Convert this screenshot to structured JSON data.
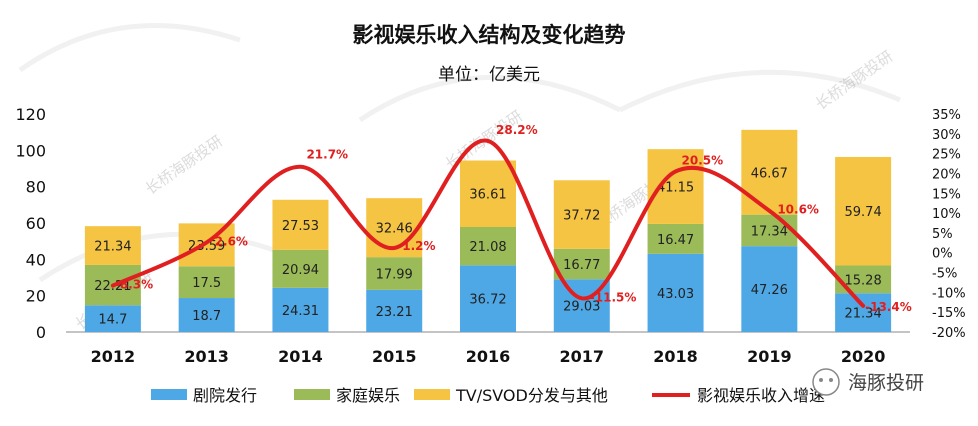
{
  "chart_data": {
    "type": "bar",
    "stacked": true,
    "title": "影视娱乐收入结构及变化趋势",
    "subtitle": "单位：亿美元",
    "categories": [
      "2012",
      "2013",
      "2014",
      "2015",
      "2016",
      "2017",
      "2018",
      "2019",
      "2020"
    ],
    "ylim": [
      0,
      120
    ],
    "yticks": [
      "0",
      "20",
      "40",
      "60",
      "80",
      "100",
      "120"
    ],
    "y2lim": [
      -20,
      35
    ],
    "y2ticks": [
      "-20%",
      "-15%",
      "-10%",
      "-5%",
      "0%",
      "5%",
      "10%",
      "15%",
      "20%",
      "25%",
      "30%",
      "35%"
    ],
    "grid": false,
    "legend_position": "bottom",
    "series": [
      {
        "name": "剧院发行",
        "color": "#4fa8e6",
        "values": [
          14.7,
          18.7,
          24.31,
          23.21,
          36.72,
          29.03,
          43.03,
          47.26,
          21.34
        ],
        "labels": [
          "14.7",
          "18.7",
          "24.31",
          "23.21",
          "36.72",
          "29.03",
          "43.03",
          "47.26",
          "21.34"
        ]
      },
      {
        "name": "家庭娱乐",
        "color": "#9bbb59",
        "values": [
          22.21,
          17.5,
          20.94,
          17.99,
          21.08,
          16.77,
          16.47,
          17.34,
          15.28
        ],
        "labels": [
          "22.21",
          "17.5",
          "20.94",
          "17.99",
          "21.08",
          "16.77",
          "16.47",
          "17.34",
          "15.28"
        ]
      },
      {
        "name": "TV/SVOD分发与其他",
        "color": "#f6c443",
        "values": [
          21.34,
          23.59,
          27.53,
          32.46,
          36.61,
          37.72,
          41.15,
          46.67,
          59.74
        ],
        "labels": [
          "21.34",
          "23.59",
          "27.53",
          "32.46",
          "36.61",
          "37.72",
          "41.15",
          "46.67",
          "59.74"
        ]
      }
    ],
    "line": {
      "name": "影视娱乐收入增速",
      "color": "#e02020",
      "axis": "right",
      "values": [
        -8.3,
        2.6,
        21.7,
        1.2,
        28.2,
        -11.5,
        20.5,
        10.6,
        -13.4
      ],
      "labels": [
        "-8.3%",
        "2.6%",
        "21.7%",
        "1.2%",
        "28.2%",
        "-11.5%",
        "20.5%",
        "10.6%",
        "-13.4%"
      ]
    }
  },
  "watermark": {
    "text": "长桥海豚投研",
    "brand": "海豚投研"
  }
}
